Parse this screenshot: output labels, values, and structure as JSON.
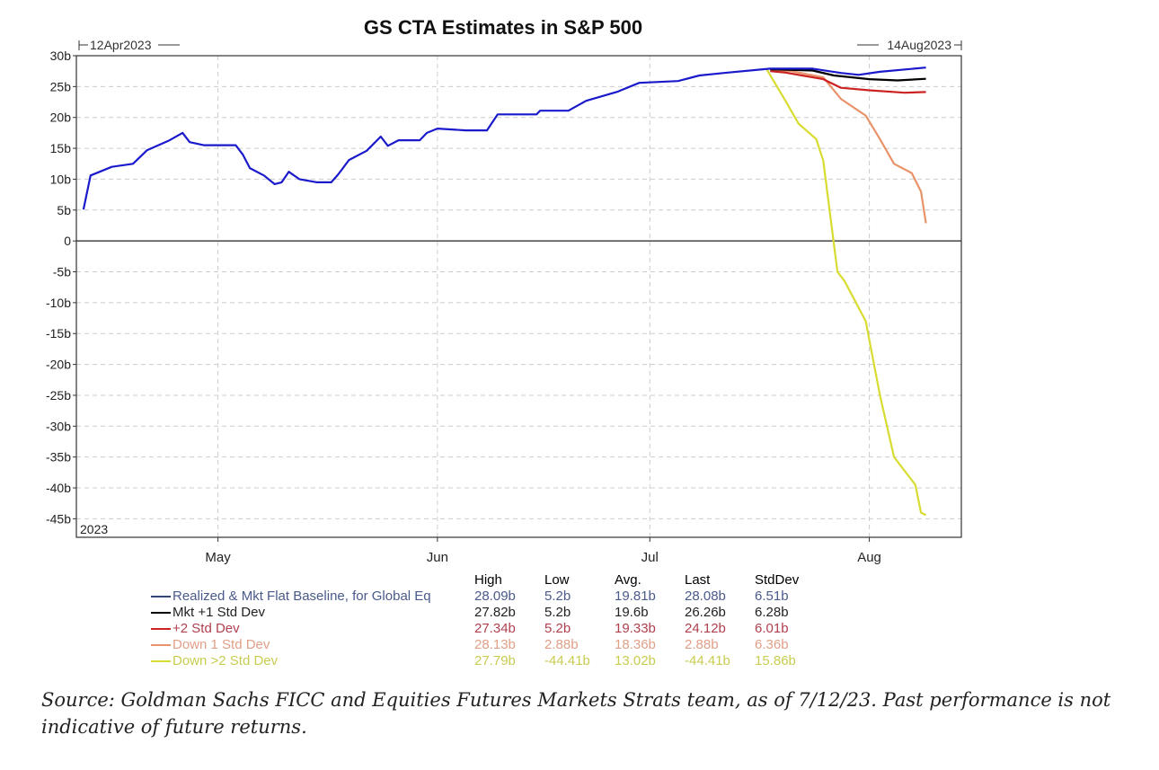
{
  "chart_data": {
    "type": "line",
    "title": "GS CTA Estimates in S&P 500",
    "range_start_label": "12Apr2023",
    "range_end_label": "14Aug2023",
    "year_label": "2023",
    "x_unit": "days since 12Apr2023",
    "xlim": [
      -1,
      124
    ],
    "ylim": [
      -48,
      30
    ],
    "x_ticks": [
      {
        "label": "May",
        "day": 19
      },
      {
        "label": "Jun",
        "day": 50
      },
      {
        "label": "Jul",
        "day": 80
      },
      {
        "label": "Aug",
        "day": 111
      }
    ],
    "y_ticks": [
      {
        "label": "30b",
        "v": 30
      },
      {
        "label": "25b",
        "v": 25
      },
      {
        "label": "20b",
        "v": 20
      },
      {
        "label": "15b",
        "v": 15
      },
      {
        "label": "10b",
        "v": 10
      },
      {
        "label": "5b",
        "v": 5
      },
      {
        "label": "0",
        "v": 0
      },
      {
        "label": "-5b",
        "v": -5
      },
      {
        "label": "-10b",
        "v": -10
      },
      {
        "label": "-15b",
        "v": -15
      },
      {
        "label": "-20b",
        "v": -20
      },
      {
        "label": "-25b",
        "v": -25
      },
      {
        "label": "-30b",
        "v": -30
      },
      {
        "label": "-35b",
        "v": -35
      },
      {
        "label": "-40b",
        "v": -40
      },
      {
        "label": "-45b",
        "v": -45
      }
    ],
    "grid": true,
    "stat_headers": [
      "High",
      "Low",
      "Avg.",
      "Last",
      "StdDev"
    ],
    "series": [
      {
        "name": "Realized & Mkt Flat Baseline, for Global Eq",
        "color": "#1a1acc",
        "legend_color": "#4a5a8a",
        "stats": [
          "28.09b",
          "5.2b",
          "19.81b",
          "28.08b",
          "6.51b"
        ],
        "points": [
          [
            0,
            5.1
          ],
          [
            1,
            10.6
          ],
          [
            4,
            12
          ],
          [
            7,
            12.5
          ],
          [
            9,
            14.7
          ],
          [
            12,
            16.2
          ],
          [
            14,
            17.5
          ],
          [
            15,
            16
          ],
          [
            17,
            15.5
          ],
          [
            21.5,
            15.5
          ],
          [
            22.5,
            14
          ],
          [
            23.5,
            11.8
          ],
          [
            25.5,
            10.6
          ],
          [
            27,
            9.2
          ],
          [
            28,
            9.5
          ],
          [
            29,
            11.2
          ],
          [
            30.5,
            10
          ],
          [
            33,
            9.5
          ],
          [
            35,
            9.5
          ],
          [
            36,
            10.8
          ],
          [
            37.5,
            13.1
          ],
          [
            40,
            14.6
          ],
          [
            42,
            16.9
          ],
          [
            43,
            15.4
          ],
          [
            44.5,
            16.3
          ],
          [
            47.5,
            16.3
          ],
          [
            48.5,
            17.5
          ],
          [
            50,
            18.2
          ],
          [
            54,
            17.9
          ],
          [
            57,
            17.9
          ],
          [
            58.5,
            20.5
          ],
          [
            64,
            20.5
          ],
          [
            64.5,
            21.1
          ],
          [
            68.5,
            21.1
          ],
          [
            71,
            22.7
          ],
          [
            75.5,
            24.2
          ],
          [
            78.5,
            25.6
          ],
          [
            84,
            25.9
          ],
          [
            87,
            26.8
          ],
          [
            90.5,
            27.2
          ],
          [
            97,
            27.9
          ],
          [
            103,
            27.9
          ],
          [
            107,
            27.2
          ],
          [
            109.5,
            26.9
          ],
          [
            112.5,
            27.4
          ],
          [
            119,
            28.08
          ]
        ]
      },
      {
        "name": "Mkt +1 Std Dev",
        "color": "#000000",
        "legend_color": "#222222",
        "stats": [
          "27.82b",
          "5.2b",
          "19.6b",
          "26.26b",
          "6.28b"
        ],
        "points": [
          [
            97,
            27.8
          ],
          [
            103,
            27.6
          ],
          [
            106,
            26.8
          ],
          [
            111,
            26.2
          ],
          [
            115,
            26.0
          ],
          [
            119,
            26.26
          ]
        ]
      },
      {
        "name": "+2 Std Dev",
        "color": "#cc2222",
        "legend_color": "#b04050",
        "stats": [
          "27.34b",
          "5.2b",
          "19.33b",
          "24.12b",
          "6.01b"
        ],
        "points": [
          [
            97,
            27.5
          ],
          [
            99,
            27.3
          ],
          [
            104.5,
            26.2
          ],
          [
            107,
            24.8
          ],
          [
            111,
            24.4
          ],
          [
            116,
            24.0
          ],
          [
            119,
            24.12
          ]
        ]
      },
      {
        "name": "Down 1 Std Dev",
        "color": "#e8936a",
        "legend_color": "#e0a088",
        "stats": [
          "28.13b",
          "2.88b",
          "18.36b",
          "2.88b",
          "6.36b"
        ],
        "points": [
          [
            97,
            27.8
          ],
          [
            100,
            27.5
          ],
          [
            104.5,
            26.5
          ],
          [
            107,
            23
          ],
          [
            110.5,
            20.3
          ],
          [
            112.5,
            16.5
          ],
          [
            114.5,
            12.5
          ],
          [
            117,
            11
          ],
          [
            118.3,
            8
          ],
          [
            119,
            2.88
          ]
        ]
      },
      {
        "name": "Down >2 Std Dev",
        "color": "#d8dc30",
        "legend_color": "#c8cc50",
        "stats": [
          "27.79b",
          "-44.41b",
          "13.02b",
          "-44.41b",
          "15.86b"
        ],
        "points": [
          [
            96.5,
            27.8
          ],
          [
            99,
            23
          ],
          [
            101,
            19
          ],
          [
            103.5,
            16.5
          ],
          [
            104.5,
            13
          ],
          [
            106.5,
            -5
          ],
          [
            107.5,
            -6.5
          ],
          [
            110.5,
            -13
          ],
          [
            112.5,
            -25
          ],
          [
            114.5,
            -35
          ],
          [
            117.5,
            -39.5
          ],
          [
            118.3,
            -44
          ],
          [
            119,
            -44.41
          ]
        ]
      }
    ]
  },
  "source": "Source: Goldman Sachs FICC and Equities Futures Markets Strats team, as of 7/12/23. Past performance is not indicative of future returns."
}
